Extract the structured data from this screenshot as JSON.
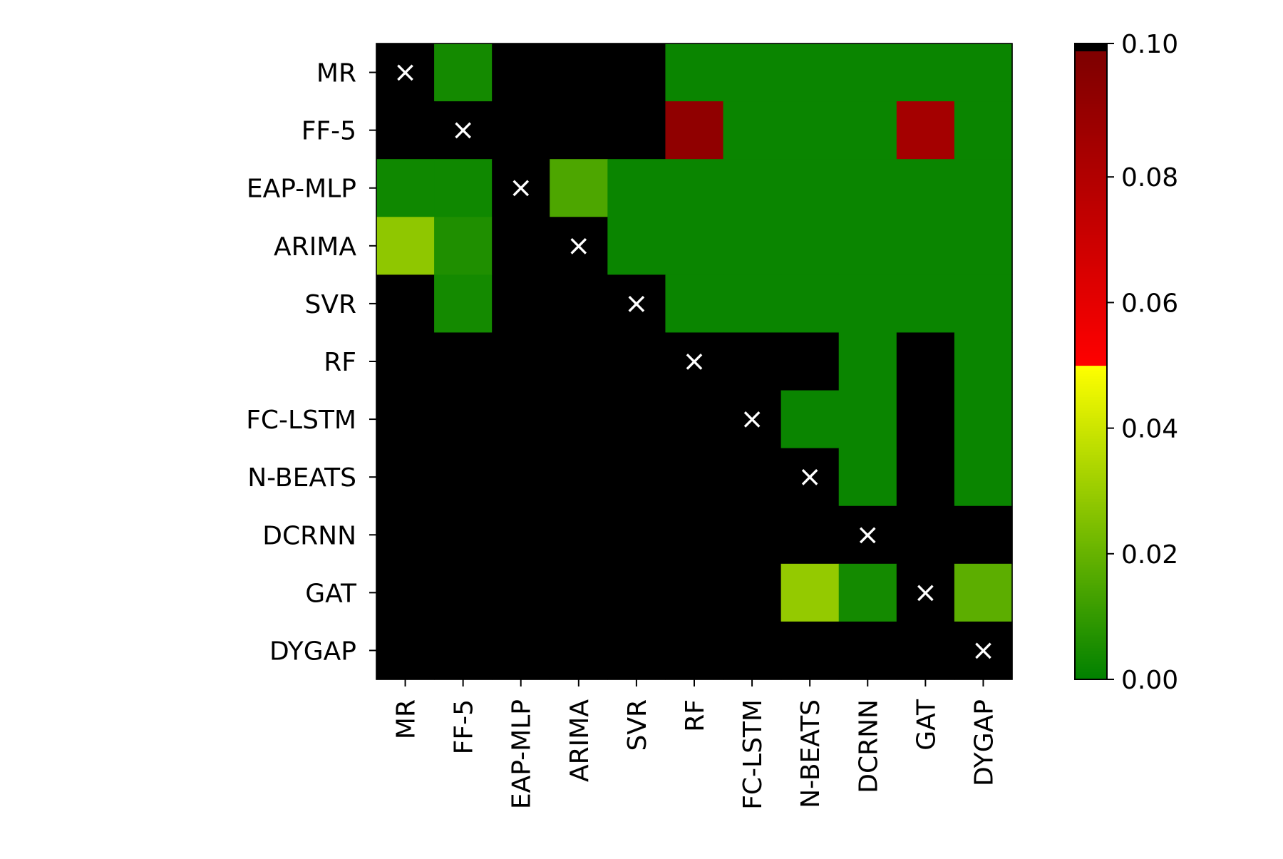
{
  "chart_data": {
    "type": "heatmap",
    "title": "",
    "xlabel": "",
    "ylabel": "",
    "x_labels": [
      "MR",
      "FF-5",
      "EAP-MLP",
      "ARIMA",
      "SVR",
      "RF",
      "FC-LSTM",
      "N-BEATS",
      "DCRNN",
      "GAT",
      "DYGAP"
    ],
    "y_labels": [
      "MR",
      "FF-5",
      "EAP-MLP",
      "ARIMA",
      "SVR",
      "RF",
      "FC-LSTM",
      "N-BEATS",
      "DCRNN",
      "GAT",
      "DYGAP"
    ],
    "diagonal_marker": "×",
    "values": [
      [
        null,
        0.004,
        "masked",
        "masked",
        "masked",
        0.002,
        0.002,
        0.002,
        0.002,
        0.002,
        0.002
      ],
      [
        "masked",
        null,
        "masked",
        "masked",
        "masked",
        0.093,
        0.002,
        0.002,
        0.002,
        0.085,
        0.002
      ],
      [
        0.003,
        0.003,
        null,
        0.015,
        0.002,
        0.002,
        0.002,
        0.002,
        0.002,
        0.002,
        0.002
      ],
      [
        0.028,
        0.006,
        "masked",
        null,
        0.002,
        0.002,
        0.002,
        0.002,
        0.002,
        0.002,
        0.002
      ],
      [
        "masked",
        0.004,
        "masked",
        "masked",
        null,
        0.002,
        0.002,
        0.002,
        0.002,
        0.002,
        0.002
      ],
      [
        "masked",
        "masked",
        "masked",
        "masked",
        "masked",
        null,
        "masked",
        "masked",
        0.002,
        "masked",
        0.002
      ],
      [
        "masked",
        "masked",
        "masked",
        "masked",
        "masked",
        "masked",
        null,
        0.002,
        0.002,
        "masked",
        0.002
      ],
      [
        "masked",
        "masked",
        "masked",
        "masked",
        "masked",
        "masked",
        "masked",
        null,
        0.002,
        "masked",
        0.002
      ],
      [
        "masked",
        "masked",
        "masked",
        "masked",
        "masked",
        "masked",
        "masked",
        "masked",
        null,
        "masked",
        "masked"
      ],
      [
        "masked",
        "masked",
        "masked",
        "masked",
        "masked",
        "masked",
        "masked",
        0.029,
        0.004,
        null,
        0.018
      ],
      [
        "masked",
        "masked",
        "masked",
        "masked",
        "masked",
        "masked",
        "masked",
        "masked",
        "masked",
        "masked",
        null
      ]
    ],
    "masked_color": "#000000",
    "diagonal_color": "#000000",
    "colorbar": {
      "min": 0.0,
      "max": 0.1,
      "ticks": [
        0.0,
        0.02,
        0.04,
        0.06,
        0.08,
        0.1
      ],
      "tick_labels": [
        "0.00",
        "0.02",
        "0.04",
        "0.06",
        "0.08",
        "0.10"
      ],
      "stops": [
        {
          "value": 0.0,
          "color": "#008000"
        },
        {
          "value": 0.05,
          "color": "#ffff00",
          "side": "below"
        },
        {
          "value": 0.05,
          "color": "#ff0000",
          "side": "above"
        },
        {
          "value": 0.099,
          "color": "#800000"
        }
      ],
      "over_color": "#000000"
    },
    "grid": false
  }
}
